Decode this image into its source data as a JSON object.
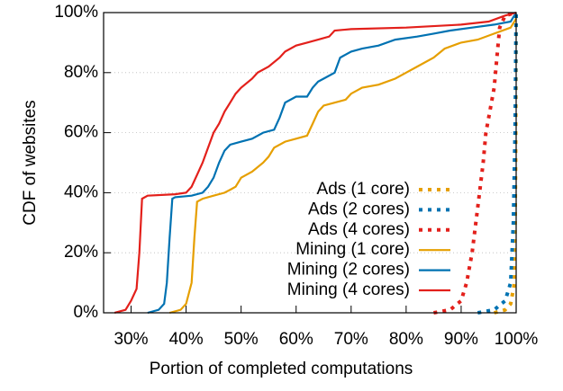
{
  "chart_data": {
    "type": "line",
    "xlabel": "Portion of completed computations",
    "ylabel": "CDF of websites",
    "xlim": [
      25,
      100
    ],
    "ylim": [
      0,
      100
    ],
    "xticks": [
      {
        "value": 30,
        "label": "30%"
      },
      {
        "value": 40,
        "label": "40%"
      },
      {
        "value": 50,
        "label": "50%"
      },
      {
        "value": 60,
        "label": "60%"
      },
      {
        "value": 70,
        "label": "70%"
      },
      {
        "value": 80,
        "label": "80%"
      },
      {
        "value": 90,
        "label": "90%"
      },
      {
        "value": 100,
        "label": "100%"
      }
    ],
    "yticks": [
      {
        "value": 0,
        "label": "0%"
      },
      {
        "value": 20,
        "label": "20%"
      },
      {
        "value": 40,
        "label": "40%"
      },
      {
        "value": 60,
        "label": "60%"
      },
      {
        "value": 80,
        "label": "80%"
      },
      {
        "value": 100,
        "label": "100%"
      }
    ],
    "grid": true,
    "legend": "lower right",
    "series": [
      {
        "name": "Ads (1 core)",
        "color": "#e69f00",
        "style": "dotted",
        "x": [
          96,
          98,
          99,
          99.7,
          99.9,
          100
        ],
        "values": [
          0,
          1,
          3,
          10,
          50,
          100
        ]
      },
      {
        "name": "Ads (2 cores)",
        "color": "#0072b2",
        "style": "dotted",
        "x": [
          93,
          96,
          98,
          99,
          99.5,
          99.8,
          100
        ],
        "values": [
          0,
          1,
          4,
          10,
          30,
          60,
          100
        ]
      },
      {
        "name": "Ads (4 cores)",
        "color": "#e3201b",
        "style": "dotted",
        "x": [
          85,
          88,
          90,
          91,
          92,
          93,
          94,
          94.5,
          95,
          96,
          96.5,
          97,
          98,
          100
        ],
        "values": [
          0,
          1,
          4,
          10,
          20,
          35,
          50,
          60,
          65,
          75,
          85,
          95,
          99,
          100
        ]
      },
      {
        "name": "Mining (1 core)",
        "color": "#e69f00",
        "style": "solid",
        "x": [
          37,
          39,
          40,
          41,
          41.5,
          42,
          43,
          45,
          47,
          48,
          49,
          50,
          52,
          54,
          55,
          56,
          58,
          60,
          62,
          63,
          64,
          65,
          67,
          69,
          70,
          72,
          75,
          78,
          80,
          82,
          85,
          87,
          90,
          93,
          96,
          99,
          100
        ],
        "values": [
          0,
          1,
          3,
          10,
          25,
          37,
          38,
          39,
          40,
          41,
          42,
          45,
          47,
          50,
          52,
          55,
          57,
          58,
          59,
          63,
          67,
          69,
          70,
          71,
          73,
          75,
          76,
          78,
          80,
          82,
          85,
          88,
          90,
          91,
          93,
          95,
          98
        ]
      },
      {
        "name": "Mining (2 cores)",
        "color": "#0072b2",
        "style": "solid",
        "x": [
          33,
          35,
          36,
          36.5,
          37,
          37.5,
          38,
          41,
          43,
          44,
          45,
          46,
          47,
          48,
          50,
          52,
          54,
          56,
          57,
          58,
          60,
          62,
          63,
          64,
          65,
          67,
          68,
          70,
          72,
          75,
          78,
          82,
          85,
          88,
          92,
          96,
          99,
          100
        ],
        "values": [
          0,
          1,
          3,
          10,
          25,
          38,
          38.5,
          39,
          40,
          42,
          45,
          50,
          54,
          56,
          57,
          58,
          60,
          61,
          65,
          70,
          72,
          72,
          75,
          77,
          78,
          80,
          85,
          87,
          88,
          89,
          91,
          92,
          93,
          94,
          95,
          96,
          97,
          100
        ]
      },
      {
        "name": "Mining (4 cores)",
        "color": "#e3201b",
        "style": "solid",
        "x": [
          27,
          29,
          30,
          31,
          31.5,
          32,
          33,
          38,
          40,
          41,
          42,
          43,
          44,
          45,
          46,
          47,
          48,
          49,
          50,
          52,
          53,
          55,
          57,
          58,
          60,
          62,
          64,
          66,
          67,
          70,
          80,
          90,
          95,
          98,
          100
        ],
        "values": [
          0,
          1,
          4,
          8,
          20,
          38,
          39,
          39.5,
          40,
          42,
          46,
          50,
          55,
          60,
          63,
          67,
          70,
          73,
          75,
          78,
          80,
          82,
          85,
          87,
          89,
          90,
          91,
          92,
          94,
          94.5,
          95,
          96,
          97,
          99,
          100
        ]
      }
    ]
  }
}
